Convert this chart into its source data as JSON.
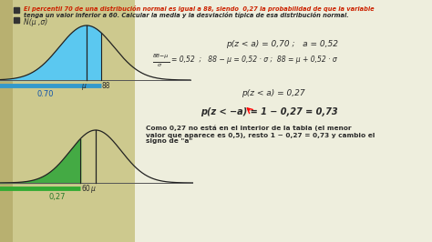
{
  "bg_color": "#cdc98e",
  "left_strip_color": "#b8b070",
  "panel_bg": "#eeeedd",
  "title_line1_red": "El percentil 70 de una distribución normal es igual a 88, siendo  0,27 la probabilidad de que la variable",
  "title_line2_dark": "tenga un valor inferior a 60. Calcular la media y la desviación típica de esa distribución normal.",
  "label_N": "N(μ ,σ)",
  "curve1_fill_color": "#5bc8f0",
  "curve1_bar_color": "#3399cc",
  "curve1_label": "0.70",
  "curve1_mu_label": "μ",
  "curve1_x_label": "88",
  "curve2_fill_color": "#44aa44",
  "curve2_bar_color": "#33aa33",
  "curve2_label": "0,27",
  "curve2_mu_label": "μ",
  "curve2_x_label": "60",
  "eq1": "p(z < a) = 0,70 ;   a = 0,52",
  "eq2_left": "= 0,52  ;   88 − μ = 0,52 · σ ;  88 = μ + 0,52 · σ",
  "eq3": "p(z < a) = 0,27",
  "eq4": "p(z < −a) = 1 − 0,27 = 0,73",
  "text_como": "Como 0,27 no está en el interior de la tabla (el menor\nvalor que aparece es 0,5), resto 1 − 0,27 = 0,73 y cambio el\nsigno de \"a\"",
  "text_color_dark": "#2a2a2a",
  "text_color_red": "#cc2200",
  "text_color_green": "#2a7a2a",
  "text_color_blue": "#1155aa"
}
